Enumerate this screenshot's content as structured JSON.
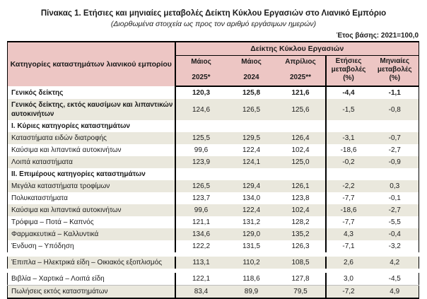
{
  "page": {
    "title": "Πίνακας 1. Ετήσιες και μηνιαίες μεταβολές Δείκτη Κύκλου Εργασιών στο Λιανικό Εμπόριο",
    "subtitle": "(Διορθωμένα στοιχεία ως προς τον αριθμό εργάσιμων ημερών)",
    "base_year": "Έτος βάσης: 2021=100,0"
  },
  "table": {
    "category_header": "Κατηγορίες καταστημάτων λιανικού εμπορίου",
    "index_header": "Δείκτης Κύκλου Εργασιών",
    "columns": [
      {
        "line1": "Μάιος",
        "line2": "2025*"
      },
      {
        "line1": "Μάιος",
        "line2": "2024"
      },
      {
        "line1": "Απρίλιος",
        "line2": "2025**"
      },
      {
        "line1": "Ετήσιες",
        "line2": "μεταβολές",
        "line3": "(%)"
      },
      {
        "line1": "Μηνιαίες",
        "line2": "μεταβολές",
        "line3": "(%)"
      }
    ],
    "rows": [
      {
        "label": "Γενικός δείκτης",
        "bold": true,
        "values_bold": true,
        "section": false,
        "values": [
          "120,3",
          "125,8",
          "121,6",
          "-4,4",
          "-1,1"
        ]
      },
      {
        "label": "Γενικός δείκτης, εκτός καυσίμων και λιπαντικών αυτοκινήτων",
        "bold": true,
        "values_bold": false,
        "section": false,
        "values": [
          "124,6",
          "126,5",
          "125,6",
          "-1,5",
          "-0,8"
        ]
      },
      {
        "label": "Ι. Κύριες κατηγορίες καταστημάτων",
        "bold": true,
        "values_bold": false,
        "section": true,
        "values": [
          "",
          "",
          "",
          "",
          ""
        ]
      },
      {
        "label": "Καταστήματα ειδών διατροφής",
        "bold": false,
        "values_bold": false,
        "section": false,
        "values": [
          "125,5",
          "129,5",
          "126,4",
          "-3,1",
          "-0,7"
        ]
      },
      {
        "label": "Καύσιμα και λιπαντικά αυτοκινήτων",
        "bold": false,
        "values_bold": false,
        "section": false,
        "values": [
          "99,6",
          "122,4",
          "102,4",
          "-18,6",
          "-2,7"
        ]
      },
      {
        "label": "Λοιπά καταστήματα",
        "bold": false,
        "values_bold": false,
        "section": false,
        "values": [
          "123,9",
          "124,1",
          "125,0",
          "-0,2",
          "-0,9"
        ]
      },
      {
        "label": "ΙΙ. Επιμέρους κατηγορίες καταστημάτων",
        "bold": true,
        "values_bold": false,
        "section": true,
        "values": [
          "",
          "",
          "",
          "",
          ""
        ]
      },
      {
        "label": "Μεγάλα καταστήματα τροφίμων",
        "bold": false,
        "values_bold": false,
        "section": false,
        "values": [
          "126,5",
          "129,4",
          "126,1",
          "-2,2",
          "0,3"
        ]
      },
      {
        "label": "Πολυκαταστήματα",
        "bold": false,
        "values_bold": false,
        "section": false,
        "values": [
          "123,7",
          "134,0",
          "123,8",
          "-7,7",
          "-0,1"
        ]
      },
      {
        "label": "Καύσιμα και λιπαντικά αυτοκινήτων",
        "bold": false,
        "values_bold": false,
        "section": false,
        "values": [
          "99,6",
          "122,4",
          "102,4",
          "-18,6",
          "-2,7"
        ]
      },
      {
        "label": "Τρόφιμα – Ποτά – Καπνός",
        "bold": false,
        "values_bold": false,
        "section": false,
        "values": [
          "121,1",
          "131,2",
          "128,2",
          "-7,7",
          "-5,5"
        ]
      },
      {
        "label": "Φαρμακευτικά – Καλλυντικά",
        "bold": false,
        "values_bold": false,
        "section": false,
        "values": [
          "134,6",
          "129,0",
          "135,2",
          "4,3",
          "-0,4"
        ]
      },
      {
        "label": "Ένδυση – Υπόδηση",
        "bold": false,
        "values_bold": false,
        "section": false,
        "values": [
          "122,2",
          "131,5",
          "126,3",
          "-7,1",
          "-3,2"
        ]
      },
      {
        "label": "Έπιπλα – Ηλεκτρικά είδη – Οικιακός εξοπλισμός",
        "bold": false,
        "values_bold": false,
        "section": false,
        "values": [
          "113,1",
          "110,2",
          "108,5",
          "2,6",
          "4,2"
        ]
      },
      {
        "label": "Βιβλία – Χαρτικά – Λοιπά είδη",
        "bold": false,
        "values_bold": false,
        "section": false,
        "values": [
          "122,1",
          "118,6",
          "127,8",
          "3,0",
          "-4,5"
        ]
      },
      {
        "label": "Πωλήσεις εκτός καταστημάτων",
        "bold": false,
        "values_bold": false,
        "section": false,
        "values": [
          "83,4",
          "89,9",
          "79,5",
          "-7,2",
          "4,9"
        ]
      }
    ]
  },
  "colors": {
    "header_bg": "#edc6c4",
    "stripe_bg": "#eae8dd",
    "border": "#000000"
  }
}
